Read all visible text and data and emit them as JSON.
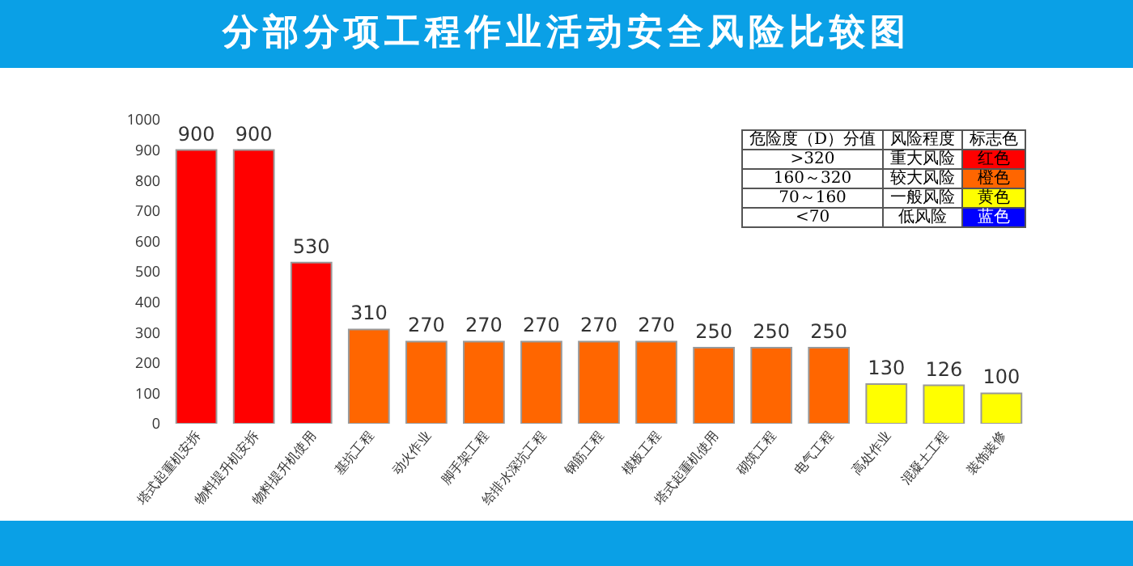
{
  "chart_data": {
    "type": "bar",
    "title": "分部分项工程作业活动安全风险比较图",
    "categories": [
      "塔式起重机安拆",
      "物料提升机安拆",
      "物料提升机使用",
      "基坑工程",
      "动火作业",
      "脚手架工程",
      "给排水深坑工程",
      "钢筋工程",
      "模板工程",
      "塔式起重机使用",
      "砌筑工程",
      "电气工程",
      "高处作业",
      "混凝土工程",
      "装饰装修"
    ],
    "values": [
      900,
      900,
      530,
      310,
      270,
      270,
      270,
      270,
      270,
      250,
      250,
      250,
      130,
      126,
      100
    ],
    "colors": [
      "#ff0000",
      "#ff0000",
      "#ff0000",
      "#ff6600",
      "#ff6600",
      "#ff6600",
      "#ff6600",
      "#ff6600",
      "#ff6600",
      "#ff6600",
      "#ff6600",
      "#ff6600",
      "#ffff00",
      "#ffff00",
      "#ffff00"
    ],
    "ylim": [
      0,
      1000
    ],
    "yticks": [
      0,
      100,
      200,
      300,
      400,
      500,
      600,
      700,
      800,
      900,
      1000
    ],
    "data_labels": true,
    "grid": false,
    "annotations": [
      "危险度（D）分值",
      "风险程度",
      "标志色",
      ">320",
      "重大风险",
      "红色",
      "160～320",
      "较大风险",
      "橙色",
      "70～160",
      "一般风险",
      "黄色",
      "<70",
      "低风险",
      "蓝色"
    ]
  }
}
